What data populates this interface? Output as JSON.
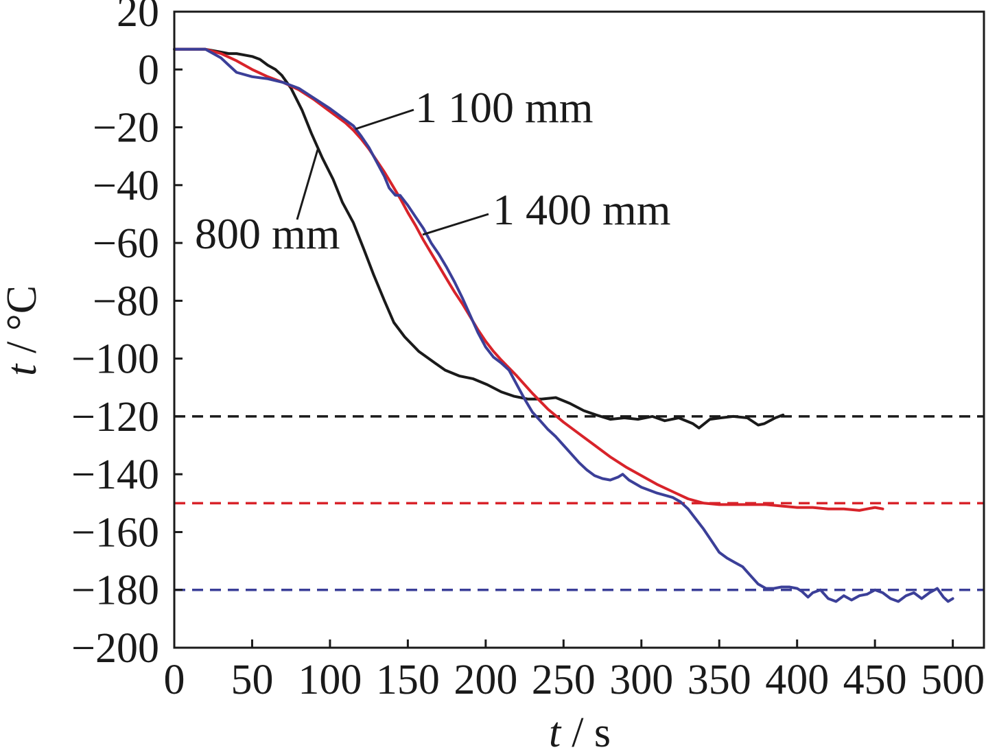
{
  "chart_data": {
    "type": "line",
    "xlim": [
      0,
      520
    ],
    "ylim": [
      -200,
      20
    ],
    "x_ticks": [
      "0",
      "50",
      "100",
      "150",
      "200",
      "250",
      "300",
      "350",
      "400",
      "450",
      "500"
    ],
    "y_ticks": [
      "20",
      "0",
      "−20",
      "−40",
      "−60",
      "−80",
      "−100",
      "−120",
      "−140",
      "−160",
      "−180",
      "−200"
    ],
    "xlabel": {
      "symbol": "t",
      "unit": "/ s"
    },
    "ylabel": {
      "symbol": "t",
      "unit": "/ °C"
    },
    "grid": false,
    "series": [
      {
        "name": "800 mm",
        "color": "#1a1a1a",
        "x": [
          0,
          10,
          20,
          25,
          30,
          35,
          40,
          45,
          50,
          55,
          60,
          65,
          69,
          75,
          82,
          88,
          95,
          102,
          108,
          115,
          122,
          128,
          135,
          141,
          148,
          157,
          166,
          174,
          183,
          192,
          201,
          210,
          218,
          227,
          236,
          245,
          254,
          263,
          271,
          280,
          289,
          298,
          307,
          315,
          324,
          333,
          337,
          344,
          351,
          359,
          368,
          375,
          379,
          386,
          391
        ],
        "y": [
          7,
          7,
          7,
          6.5,
          6,
          5.5,
          5.5,
          5,
          4.5,
          3.5,
          1.5,
          0,
          -2,
          -6.5,
          -14,
          -22,
          -30.5,
          -38,
          -46,
          -53,
          -62.5,
          -71,
          -80,
          -87.5,
          -92.5,
          -97.5,
          -101,
          -104,
          -106,
          -107,
          -109,
          -111.5,
          -113,
          -114,
          -114,
          -113.5,
          -115.5,
          -118,
          -119.5,
          -121,
          -120.5,
          -121,
          -120,
          -121.5,
          -120.5,
          -122.5,
          -124,
          -121,
          -120.5,
          -120,
          -120.5,
          -123,
          -122.5,
          -120.5,
          -119.5
        ]
      },
      {
        "name": "1 100 mm",
        "color": "#d8232a",
        "x": [
          0,
          10,
          20,
          30,
          40,
          50,
          60,
          70,
          80,
          90,
          100,
          110,
          115,
          120,
          125,
          130,
          135,
          140,
          145,
          150,
          155,
          160,
          165,
          170,
          175,
          180,
          185,
          190,
          195,
          200,
          205,
          210,
          220,
          230,
          240,
          250,
          260,
          270,
          280,
          290,
          300,
          310,
          320,
          330,
          340,
          350,
          360,
          370,
          380,
          390,
          400,
          410,
          420,
          430,
          440,
          445,
          450,
          455
        ],
        "y": [
          7,
          7,
          7,
          5.5,
          3,
          0,
          -2.5,
          -4.5,
          -7,
          -10.5,
          -14.5,
          -18.5,
          -21,
          -24,
          -27.5,
          -31.5,
          -35.5,
          -40,
          -44.5,
          -49.5,
          -54,
          -59,
          -63.5,
          -68,
          -72.5,
          -77,
          -81,
          -85.5,
          -90,
          -94,
          -97.5,
          -100.5,
          -106,
          -112,
          -117.5,
          -122,
          -126,
          -130,
          -134,
          -137.5,
          -140.5,
          -143.5,
          -146,
          -148.5,
          -150,
          -150.5,
          -150.5,
          -150.5,
          -150.5,
          -151,
          -151.5,
          -151.5,
          -152,
          -152,
          -152.5,
          -152,
          -151.5,
          -152
        ]
      },
      {
        "name": "1 400 mm",
        "color": "#3b3f98",
        "x": [
          0,
          10,
          20,
          30,
          35,
          40,
          50,
          60,
          70,
          80,
          90,
          100,
          110,
          115,
          120,
          125,
          130,
          135,
          138,
          142,
          145,
          150,
          155,
          160,
          165,
          170,
          175,
          180,
          185,
          190,
          195,
          200,
          205,
          210,
          215,
          220,
          225,
          230,
          235,
          240,
          245,
          250,
          255,
          260,
          265,
          270,
          275,
          280,
          285,
          288,
          292,
          300,
          310,
          320,
          325,
          330,
          335,
          340,
          345,
          350,
          355,
          360,
          365,
          370,
          375,
          380,
          385,
          390,
          395,
          400,
          403,
          407,
          410,
          415,
          420,
          425,
          430,
          435,
          440,
          445,
          450,
          455,
          460,
          465,
          470,
          475,
          480,
          485,
          490,
          494,
          497,
          500
        ],
        "y": [
          7,
          7,
          7,
          4,
          1.5,
          -1,
          -2.5,
          -3.2,
          -4.5,
          -6.5,
          -10,
          -13.5,
          -17.5,
          -19.5,
          -23,
          -27,
          -32,
          -37,
          -41,
          -43.5,
          -43.5,
          -47,
          -51,
          -55,
          -60,
          -64,
          -68.5,
          -73.5,
          -79,
          -85,
          -91,
          -96,
          -99.5,
          -101.5,
          -104,
          -109,
          -114,
          -118.5,
          -121.5,
          -124.5,
          -127,
          -130,
          -133,
          -136,
          -138.5,
          -140.5,
          -141.5,
          -142,
          -141,
          -140,
          -142,
          -144.5,
          -146.5,
          -148,
          -149.5,
          -152,
          -155.5,
          -159,
          -163,
          -167,
          -169,
          -170.5,
          -172,
          -175,
          -178,
          -179.5,
          -179.5,
          -179,
          -179,
          -179.5,
          -180.5,
          -182.5,
          -181,
          -180,
          -183,
          -184,
          -182,
          -183.5,
          -182,
          -181.5,
          -180,
          -181,
          -183,
          -184,
          -182,
          -181,
          -183,
          -181,
          -179.5,
          -182.5,
          -184,
          -183
        ]
      }
    ],
    "reference_lines": [
      {
        "y": -120,
        "color": "#1a1a1a"
      },
      {
        "y": -150,
        "color": "#d8232a"
      },
      {
        "y": -180,
        "color": "#3b3f98"
      }
    ]
  }
}
